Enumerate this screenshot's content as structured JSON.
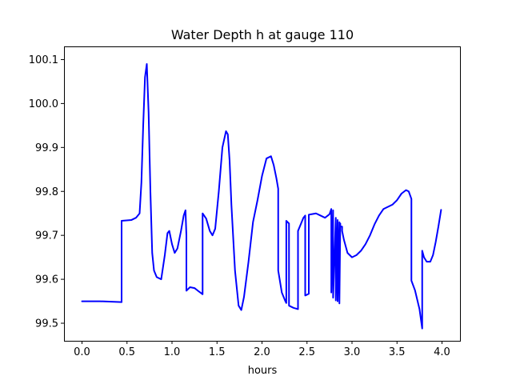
{
  "chart_data": {
    "type": "line",
    "title": "Water Depth h at gauge 110",
    "xlabel": "hours",
    "ylabel": "",
    "xlim": [
      -0.2,
      4.2
    ],
    "ylim": [
      99.46,
      100.13
    ],
    "grid": false,
    "x_ticks": [
      0.0,
      0.5,
      1.0,
      1.5,
      2.0,
      2.5,
      3.0,
      3.5,
      4.0
    ],
    "x_tick_labels": [
      "0.0",
      "0.5",
      "1.0",
      "1.5",
      "2.0",
      "2.5",
      "3.0",
      "3.5",
      "4.0"
    ],
    "y_ticks": [
      99.5,
      99.6,
      99.7,
      99.8,
      99.9,
      100.0,
      100.1
    ],
    "y_tick_labels": [
      "99.5",
      "99.6",
      "99.7",
      "99.8",
      "99.9",
      "100.0",
      "100.1"
    ],
    "series": [
      {
        "color": "#0000ff",
        "x": [
          0.0,
          0.2,
          0.44,
          0.44,
          0.55,
          0.6,
          0.64,
          0.66,
          0.68,
          0.7,
          0.72,
          0.74,
          0.76,
          0.78,
          0.8,
          0.83,
          0.88,
          0.92,
          0.95,
          0.97,
          1.0,
          1.03,
          1.06,
          1.1,
          1.13,
          1.15,
          1.16,
          1.16,
          1.2,
          1.25,
          1.3,
          1.34,
          1.34,
          1.38,
          1.42,
          1.45,
          1.48,
          1.52,
          1.56,
          1.6,
          1.62,
          1.64,
          1.66,
          1.7,
          1.74,
          1.77,
          1.8,
          1.85,
          1.9,
          1.95,
          2.0,
          2.05,
          2.1,
          2.13,
          2.16,
          2.18,
          2.18,
          2.22,
          2.26,
          2.27,
          2.27,
          2.3,
          2.3,
          2.35,
          2.4,
          2.4,
          2.44,
          2.46,
          2.48,
          2.48,
          2.52,
          2.52,
          2.6,
          2.65,
          2.7,
          2.75,
          2.77,
          2.77,
          2.79,
          2.79,
          2.82,
          2.82,
          2.84,
          2.84,
          2.86,
          2.86,
          2.87,
          2.87,
          2.89,
          2.89,
          2.91,
          2.95,
          3.0,
          3.05,
          3.1,
          3.15,
          3.2,
          3.25,
          3.3,
          3.35,
          3.4,
          3.45,
          3.5,
          3.55,
          3.6,
          3.63,
          3.66,
          3.66,
          3.7,
          3.75,
          3.78,
          3.78,
          3.8,
          3.83,
          3.87,
          3.9,
          3.93,
          3.96,
          3.99
        ],
        "y": [
          99.55,
          99.55,
          99.548,
          99.733,
          99.735,
          99.74,
          99.75,
          99.82,
          99.95,
          100.06,
          100.09,
          99.98,
          99.8,
          99.66,
          99.62,
          99.605,
          99.6,
          99.655,
          99.705,
          99.71,
          99.68,
          99.66,
          99.67,
          99.71,
          99.745,
          99.757,
          99.7,
          99.574,
          99.582,
          99.58,
          99.572,
          99.566,
          99.75,
          99.738,
          99.71,
          99.7,
          99.715,
          99.8,
          99.9,
          99.937,
          99.93,
          99.87,
          99.77,
          99.62,
          99.54,
          99.53,
          99.56,
          99.64,
          99.73,
          99.78,
          99.835,
          99.875,
          99.88,
          99.86,
          99.83,
          99.806,
          99.62,
          99.57,
          99.55,
          99.546,
          99.733,
          99.727,
          99.54,
          99.535,
          99.532,
          99.71,
          99.73,
          99.74,
          99.745,
          99.563,
          99.567,
          99.747,
          99.75,
          99.745,
          99.74,
          99.748,
          99.76,
          99.57,
          99.757,
          99.558,
          99.74,
          99.552,
          99.735,
          99.55,
          99.73,
          99.545,
          99.727,
          99.72,
          99.72,
          99.71,
          99.69,
          99.66,
          99.65,
          99.655,
          99.665,
          99.68,
          99.7,
          99.725,
          99.745,
          99.76,
          99.765,
          99.77,
          99.78,
          99.795,
          99.803,
          99.8,
          99.783,
          99.597,
          99.575,
          99.532,
          99.488,
          99.665,
          99.65,
          99.64,
          99.64,
          99.655,
          99.685,
          99.72,
          99.758
        ]
      }
    ]
  }
}
